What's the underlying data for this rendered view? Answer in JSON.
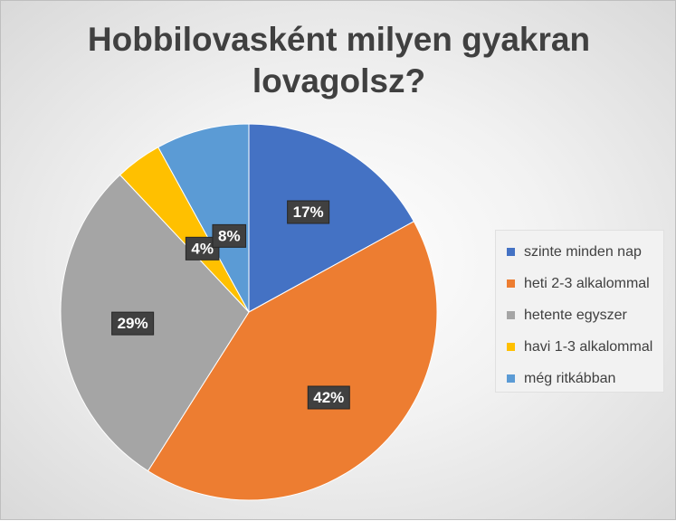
{
  "chart_data": {
    "type": "pie",
    "title_lines": [
      "Hobbilovasként milyen gyakran",
      "lovagolsz?"
    ],
    "categories": [
      "szinte minden nap",
      "heti 2-3 alkalommal",
      "hetente egyszer",
      "havi 1-3 alkalommal",
      "még ritkábban"
    ],
    "values": [
      17,
      42,
      29,
      4,
      8
    ],
    "labels": [
      "17%",
      "42%",
      "29%",
      "4%",
      "8%"
    ],
    "colors": [
      "#4472c4",
      "#ed7d31",
      "#a5a5a5",
      "#ffc000",
      "#5b9bd5"
    ],
    "legend_position": "right"
  }
}
